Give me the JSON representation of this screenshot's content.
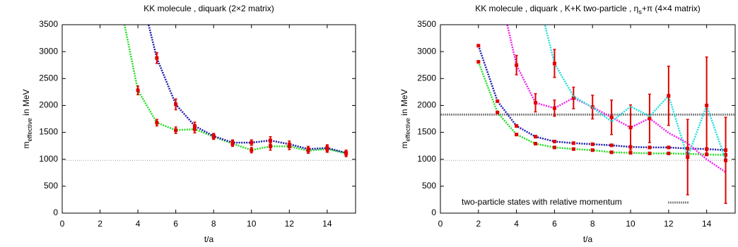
{
  "chart_data": [
    {
      "type": "line",
      "title": "KK molecule  ,  diquark  (2×2 matrix)",
      "x_label": "t/a",
      "y_label": [
        "m",
        "effective",
        " in MeV"
      ],
      "xlim": [
        0,
        15.5
      ],
      "ylim": [
        0,
        3500
      ],
      "xticks": [
        0,
        2,
        4,
        6,
        8,
        10,
        12,
        14
      ],
      "yticks": [
        0,
        500,
        1000,
        1500,
        2000,
        2500,
        3000,
        3500
      ],
      "marker_color": "#e00000",
      "x": [
        3,
        4,
        5,
        6,
        7,
        8,
        9,
        10,
        11,
        12,
        13,
        14,
        15
      ],
      "series": [
        {
          "color": "#22dd22",
          "values": [
            4000,
            2280,
            1680,
            1540,
            1560,
            1420,
            1290,
            1170,
            1240,
            1240,
            1160,
            1190,
            1110
          ],
          "errors": [
            null,
            80,
            60,
            60,
            70,
            50,
            50,
            50,
            70,
            60,
            50,
            60,
            60
          ]
        },
        {
          "color": "#1a1aaa",
          "values": [
            null,
            4300,
            2880,
            2020,
            1620,
            1430,
            1310,
            1310,
            1350,
            1280,
            1190,
            1210,
            1120
          ],
          "errors": [
            null,
            null,
            100,
            100,
            70,
            50,
            50,
            50,
            70,
            60,
            50,
            60,
            50
          ]
        }
      ],
      "ref_lines": [
        {
          "value": 980,
          "color": "#999999",
          "width": 1
        }
      ]
    },
    {
      "type": "line",
      "title": [
        "KK molecule  ,  diquark  ,  K+K two-particle  ,  η",
        "s",
        "+π  (4×4 matrix)"
      ],
      "x_label": "t/a",
      "y_label": [
        "m",
        "effective",
        " in MeV"
      ],
      "xlim": [
        0,
        15.5
      ],
      "ylim": [
        0,
        3500
      ],
      "xticks": [
        0,
        2,
        4,
        6,
        8,
        10,
        12,
        14
      ],
      "yticks": [
        0,
        500,
        1000,
        1500,
        2000,
        2500,
        3000,
        3500
      ],
      "marker_color": "#e00000",
      "x": [
        2,
        3,
        4,
        5,
        6,
        7,
        8,
        9,
        10,
        11,
        12,
        13,
        14,
        15
      ],
      "series": [
        {
          "color": "#22dd22",
          "values": [
            2810,
            1870,
            1460,
            1290,
            1220,
            1190,
            1170,
            1130,
            1120,
            1110,
            1110,
            1100,
            1090,
            1080
          ],
          "errors": [
            20,
            20,
            20,
            20,
            20,
            20,
            20,
            20,
            20,
            20,
            20,
            20,
            20,
            20
          ]
        },
        {
          "color": "#1a1aaa",
          "values": [
            3110,
            2080,
            1620,
            1420,
            1330,
            1300,
            1280,
            1260,
            1230,
            1220,
            1220,
            1200,
            1190,
            1170
          ],
          "errors": [
            20,
            20,
            20,
            20,
            20,
            20,
            20,
            20,
            20,
            20,
            20,
            20,
            20,
            20
          ]
        },
        {
          "color": "#ee22ee",
          "values": [
            null,
            4300,
            2750,
            2050,
            1950,
            2140,
            1970,
            1780,
            1590,
            1760,
            1490,
            1300,
            1000,
            760
          ],
          "errors": [
            null,
            null,
            180,
            170,
            150,
            200,
            220,
            320,
            420,
            450,
            null,
            null,
            null,
            null
          ]
        },
        {
          "color": "#22dddd",
          "values": [
            null,
            null,
            null,
            4200,
            2780,
            2170,
            1960,
            1700,
            1980,
            1800,
            2180,
            1040,
            2000,
            980
          ],
          "errors": [
            null,
            null,
            null,
            null,
            260,
            null,
            null,
            null,
            null,
            null,
            550,
            700,
            900,
            800
          ]
        }
      ],
      "ref_lines": [
        {
          "value": 980,
          "color": "#999999",
          "width": 1
        },
        {
          "value": 1830,
          "color": "#888888",
          "width": 3,
          "name": "two-particle states with relative momentum"
        }
      ]
    }
  ]
}
